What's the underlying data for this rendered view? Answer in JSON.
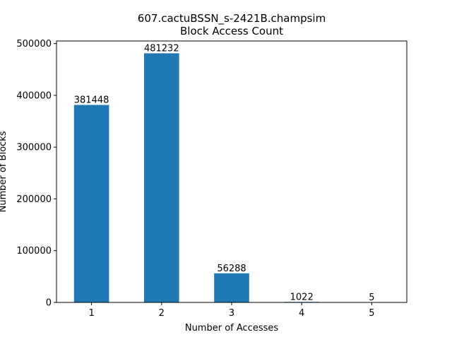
{
  "chart_data": {
    "type": "bar",
    "title": "607.cactuBSSN_s-2421B.champsim",
    "subtitle": "Block Access Count",
    "xlabel": "Number of Accesses",
    "ylabel": "Number of Blocks",
    "categories": [
      "1",
      "2",
      "3",
      "4",
      "5"
    ],
    "values": [
      381448,
      481232,
      56288,
      1022,
      5
    ],
    "data_labels": [
      "381448",
      "481232",
      "56288",
      "1022",
      "5"
    ],
    "ylim": [
      0,
      505000
    ],
    "yticks": [
      0,
      100000,
      200000,
      300000,
      400000,
      500000
    ],
    "ytick_labels": [
      "0",
      "100000",
      "200000",
      "300000",
      "400000",
      "500000"
    ],
    "bar_color": "#1f77b4",
    "grid": false,
    "legend": "none"
  }
}
